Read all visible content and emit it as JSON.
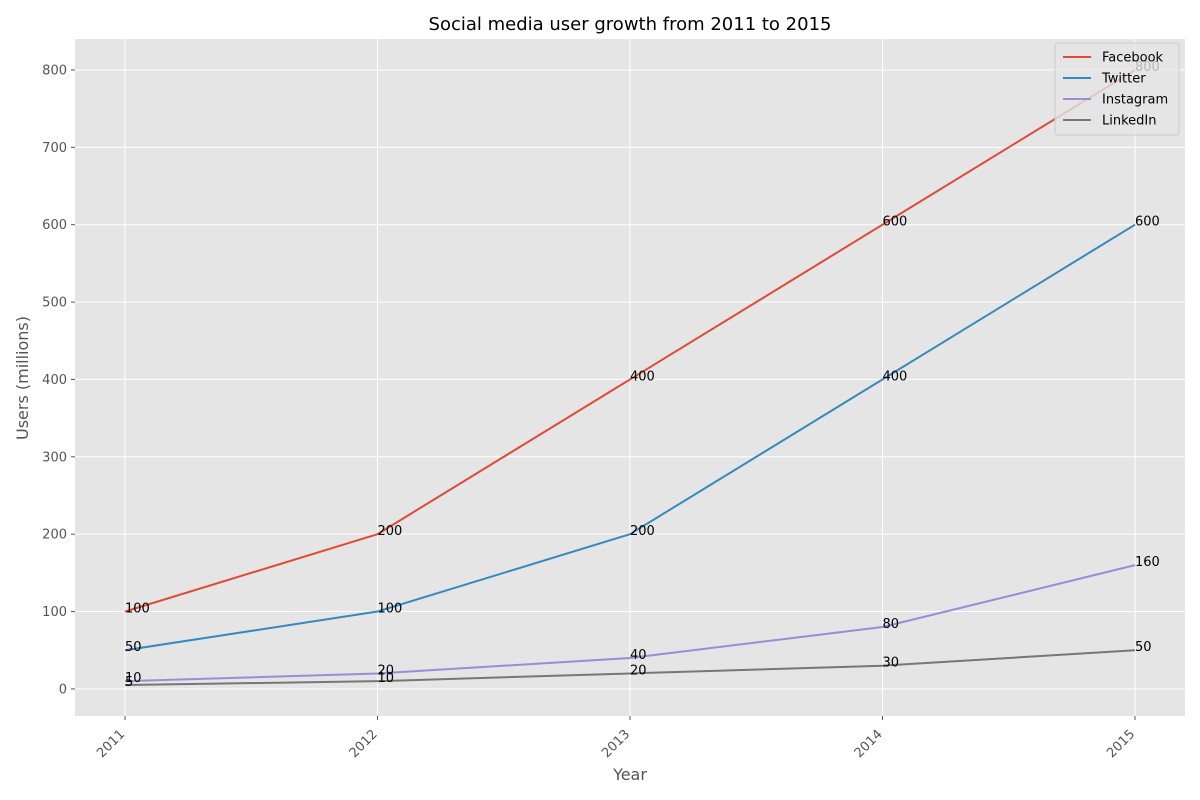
{
  "chart_data": {
    "type": "line",
    "title": "Social media user growth from 2011 to 2015",
    "xlabel": "Year",
    "ylabel": "Users (millions)",
    "categories": [
      "2011",
      "2012",
      "2013",
      "2014",
      "2015"
    ],
    "ylim": [
      -35,
      840
    ],
    "yticks": [
      0,
      100,
      200,
      300,
      400,
      500,
      600,
      700,
      800
    ],
    "grid": true,
    "legend_position": "top-right",
    "series": [
      {
        "name": "Facebook",
        "color": "#E24A33",
        "values": [
          100,
          200,
          400,
          600,
          800
        ]
      },
      {
        "name": "Twitter",
        "color": "#348ABD",
        "values": [
          50,
          100,
          200,
          400,
          600
        ]
      },
      {
        "name": "Instagram",
        "color": "#988ED5",
        "values": [
          10,
          20,
          40,
          80,
          160
        ]
      },
      {
        "name": "LinkedIn",
        "color": "#777777",
        "values": [
          5,
          10,
          20,
          30,
          50
        ]
      }
    ]
  }
}
